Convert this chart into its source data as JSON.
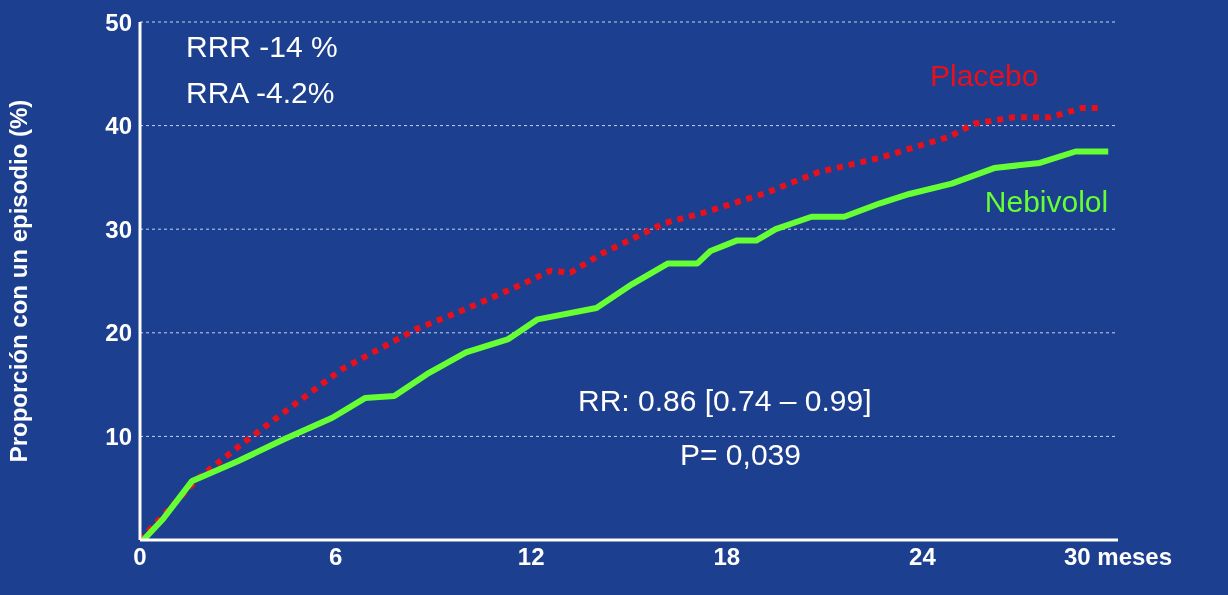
{
  "chart_data": {
    "type": "line",
    "ylabel": "Proporción con un episodio (%)",
    "xlim": [
      0,
      30
    ],
    "xticks": [
      0,
      6,
      12,
      18,
      24,
      {
        "value": 30,
        "label": "30 meses"
      }
    ],
    "ylim": [
      0,
      50
    ],
    "yticks": [
      10,
      20,
      30,
      40,
      50
    ],
    "grid": "y",
    "marker": "none",
    "annotations": [
      "RRR -14 %",
      "RRA -4.2%",
      "RR: 0.86 [0.74 – 0.99]",
      "P= 0,039"
    ],
    "series": [
      {
        "name": "Placebo",
        "color": "#e8101a",
        "line_style": "dotted",
        "x": [
          0,
          1.8,
          3.1,
          4.7,
          6.2,
          8.5,
          10,
          11.8,
          12.6,
          13.2,
          14.2,
          16.1,
          17.3,
          19.2,
          20.8,
          22.7,
          24.8,
          25.6,
          26.8,
          27.9,
          28.9,
          29.4
        ],
        "values": [
          0,
          6,
          9.2,
          13,
          16.5,
          20.4,
          22.3,
          24.8,
          26,
          25.8,
          27.7,
          30.6,
          31.6,
          33.5,
          35.5,
          36.9,
          38.9,
          40.2,
          40.8,
          40.8,
          41.7,
          41.7
        ]
      },
      {
        "name": "Nebivolol",
        "color": "#66ff33",
        "line_style": "solid",
        "x": [
          0.1,
          0.7,
          1.6,
          3,
          4.4,
          5.9,
          6.9,
          7.8,
          8.8,
          10,
          11.3,
          12.2,
          14,
          15.1,
          16.2,
          17.1,
          17.5,
          18.3,
          18.9,
          19.5,
          20.6,
          21.6,
          22.7,
          23.6,
          24.9,
          26.2,
          27.6,
          28.7,
          29.7
        ],
        "values": [
          0,
          2,
          5.7,
          7.6,
          9.7,
          11.8,
          13.7,
          13.9,
          16,
          18.1,
          19.4,
          21.3,
          22.4,
          24.7,
          26.7,
          26.7,
          27.9,
          28.9,
          28.9,
          30,
          31.2,
          31.2,
          32.5,
          33.4,
          34.4,
          35.9,
          36.4,
          37.5,
          37.5
        ]
      }
    ]
  }
}
